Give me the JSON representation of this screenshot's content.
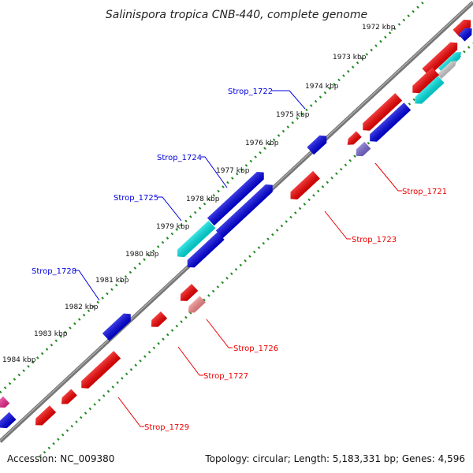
{
  "title": "Salinispora tropica CNB-440, complete genome",
  "accession": "Accession: NC_009380",
  "summary": "Topology: circular; Length: 5,183,331 bp; Genes: 4,596",
  "colors": {
    "forward": "#0000dd",
    "reverse": "#ee0000",
    "cyan": "#00dddd",
    "tick": "#228822",
    "backbone": "#777777"
  },
  "kbp_labels": [
    "1972 kbp",
    "1973 kbp",
    "1974 kbp",
    "1975 kbp",
    "1976 kbp",
    "1977 kbp",
    "1978 kbp",
    "1979 kbp",
    "1980 kbp",
    "1981 kbp",
    "1982 kbp",
    "1983 kbp",
    "1984 kbp"
  ],
  "gene_labels": [
    {
      "name": "Strop_1722",
      "strand": "forward"
    },
    {
      "name": "Strop_1724",
      "strand": "forward"
    },
    {
      "name": "Strop_1725",
      "strand": "forward"
    },
    {
      "name": "Strop_1728",
      "strand": "forward"
    },
    {
      "name": "Strop_1721",
      "strand": "reverse"
    },
    {
      "name": "Strop_1723",
      "strand": "reverse"
    },
    {
      "name": "Strop_1726",
      "strand": "reverse"
    },
    {
      "name": "Strop_1727",
      "strand": "reverse"
    },
    {
      "name": "Strop_1729",
      "strand": "reverse"
    }
  ]
}
